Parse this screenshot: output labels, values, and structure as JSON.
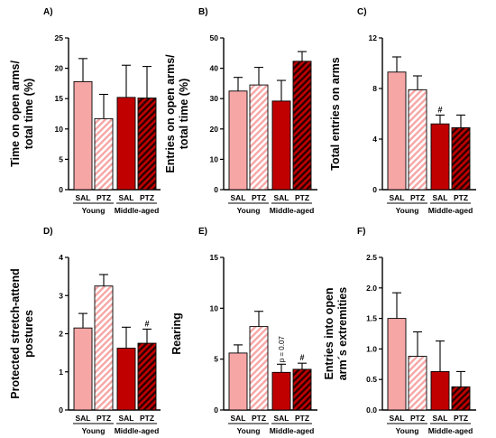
{
  "colors": {
    "young": "#f7a6a6",
    "middle_aged": "#c00000",
    "middle_aged_dark": "#a00000",
    "outline": "#000000"
  },
  "chart_data": [
    {
      "type": "bar",
      "panel": "A)",
      "ylabel": "Time on open arms/\ntotal time (%)",
      "ylim": [
        0,
        25
      ],
      "yticks": [
        "0",
        "5",
        "10",
        "15",
        "20",
        "25"
      ],
      "categories": [
        "SAL",
        "PTZ",
        "SAL",
        "PTZ"
      ],
      "groups": [
        "Young",
        "Middle-aged"
      ],
      "values": [
        17.8,
        11.7,
        15.2,
        15.1
      ],
      "errors": [
        3.8,
        4.0,
        5.3,
        5.2
      ],
      "annotations": [
        "",
        "",
        "",
        ""
      ]
    },
    {
      "type": "bar",
      "panel": "B)",
      "ylabel": "Entries on open arms/\ntotal time (%)",
      "ylim": [
        0,
        50
      ],
      "yticks": [
        "0",
        "10",
        "20",
        "30",
        "40",
        "50"
      ],
      "categories": [
        "SAL",
        "PTZ",
        "SAL",
        "PTZ"
      ],
      "groups": [
        "Young",
        "Middle-aged"
      ],
      "values": [
        32.5,
        34.5,
        29.2,
        42.3
      ],
      "errors": [
        4.5,
        5.8,
        6.8,
        3.2
      ],
      "annotations": [
        "",
        "",
        "",
        ""
      ]
    },
    {
      "type": "bar",
      "panel": "C)",
      "ylabel": "Total entries on arms",
      "ylim": [
        0,
        12
      ],
      "yticks": [
        "0",
        "4",
        "8",
        "12"
      ],
      "categories": [
        "SAL",
        "PTZ",
        "SAL",
        "PTZ"
      ],
      "groups": [
        "Young",
        "Middle-aged"
      ],
      "values": [
        9.3,
        7.9,
        5.2,
        4.9
      ],
      "errors": [
        1.2,
        1.1,
        0.7,
        1.0
      ],
      "annotations": [
        "",
        "",
        "#",
        ""
      ]
    },
    {
      "type": "bar",
      "panel": "D)",
      "ylabel": "Protected stretch-attend\npostures",
      "ylim": [
        0,
        4
      ],
      "yticks": [
        "0",
        "1",
        "2",
        "3",
        "4"
      ],
      "categories": [
        "SAL",
        "PTZ",
        "SAL",
        "PTZ"
      ],
      "groups": [
        "Young",
        "Middle-aged"
      ],
      "values": [
        2.15,
        3.25,
        1.62,
        1.75
      ],
      "errors": [
        0.38,
        0.3,
        0.55,
        0.37
      ],
      "annotations": [
        "",
        "",
        "",
        "#"
      ]
    },
    {
      "type": "bar",
      "panel": "E)",
      "ylabel": "Rearing",
      "ylim": [
        0,
        15
      ],
      "yticks": [
        "0",
        "5",
        "10",
        "15"
      ],
      "categories": [
        "SAL",
        "PTZ",
        "SAL",
        "PTZ"
      ],
      "groups": [
        "Young",
        "Middle-aged"
      ],
      "values": [
        5.6,
        8.2,
        3.7,
        4.0
      ],
      "errors": [
        0.8,
        1.5,
        0.8,
        0.6
      ],
      "annotations": [
        "",
        "",
        "p = 0.07",
        "#"
      ]
    },
    {
      "type": "bar",
      "panel": "F)",
      "ylabel": "Entries into open\narm´s extremities",
      "ylim": [
        0,
        2.5
      ],
      "yticks": [
        "0.0",
        "0.5",
        "1.0",
        "1.5",
        "2.0",
        "2.5"
      ],
      "categories": [
        "SAL",
        "PTZ",
        "SAL",
        "PTZ"
      ],
      "groups": [
        "Young",
        "Middle-aged"
      ],
      "values": [
        1.5,
        0.88,
        0.63,
        0.38
      ],
      "errors": [
        0.42,
        0.4,
        0.5,
        0.25
      ],
      "annotations": [
        "",
        "",
        "",
        ""
      ]
    }
  ]
}
